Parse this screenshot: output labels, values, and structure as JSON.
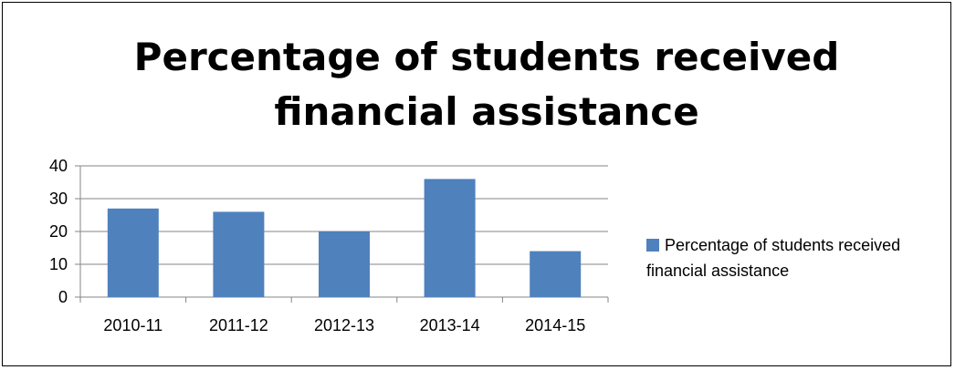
{
  "chart_data": {
    "type": "bar",
    "title": "Percentage of students received financial assistance",
    "categories": [
      "2010-11",
      "2011-12",
      "2012-13",
      "2013-14",
      "2014-15"
    ],
    "series": [
      {
        "name": "Percentage of students received financial assistance",
        "values": [
          27,
          26,
          20,
          36,
          14
        ],
        "color": "#4f81bd"
      }
    ],
    "yticks": [
      "0",
      "10",
      "20",
      "30",
      "40"
    ],
    "ylim": [
      0,
      40
    ],
    "grid": true,
    "legend": "right"
  }
}
